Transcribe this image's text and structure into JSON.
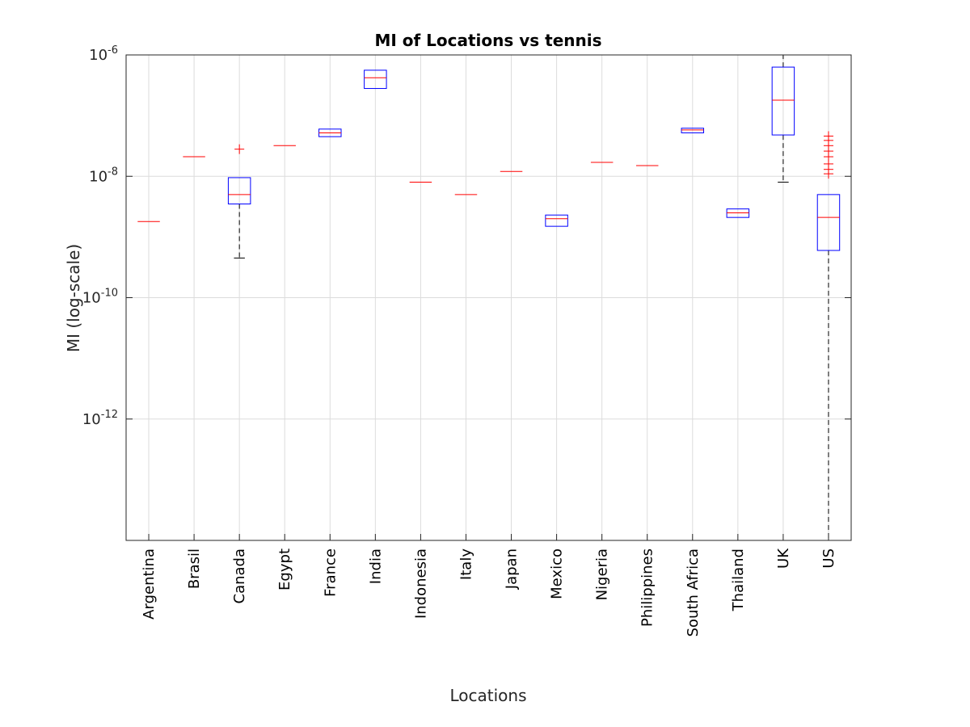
{
  "chart_data": {
    "type": "boxplot",
    "title": "MI of Locations vs tennis",
    "xlabel": "Locations",
    "ylabel": "MI (log-scale)",
    "yscale": "log",
    "ylim": [
      1e-14,
      1e-06
    ],
    "grid": true,
    "yticks": [
      {
        "value": 1e-12,
        "base": "10",
        "exp": "-12"
      },
      {
        "value": 1e-10,
        "base": "10",
        "exp": "-10"
      },
      {
        "value": 1e-08,
        "base": "10",
        "exp": "-8"
      },
      {
        "value": 1e-06,
        "base": "10",
        "exp": "-6"
      }
    ],
    "categories": [
      "Argentina",
      "Brasil",
      "Canada",
      "Egypt",
      "France",
      "India",
      "Indonesia",
      "Italy",
      "Japan",
      "Mexico",
      "Nigeria",
      "Philippines",
      "South Africa",
      "Thailand",
      "UK",
      "US"
    ],
    "boxes": [
      {
        "category": "Argentina",
        "median": 1.8e-09
      },
      {
        "category": "Brasil",
        "median": 2.1e-08
      },
      {
        "category": "Canada",
        "q1": 3.5e-09,
        "median": 5e-09,
        "q3": 9.5e-09,
        "whisker_low": 4.5e-10,
        "whisker_high": 9.5e-09,
        "outliers": [
          2.8e-08
        ]
      },
      {
        "category": "Egypt",
        "median": 3.2e-08
      },
      {
        "category": "France",
        "q1": 4.5e-08,
        "median": 5.2e-08,
        "q3": 6e-08,
        "whisker_low": 4.5e-08,
        "whisker_high": 6e-08
      },
      {
        "category": "India",
        "q1": 2.8e-07,
        "median": 4.2e-07,
        "q3": 5.6e-07,
        "whisker_low": 2.8e-07,
        "whisker_high": 5.6e-07
      },
      {
        "category": "Indonesia",
        "median": 8e-09
      },
      {
        "category": "Italy",
        "median": 5e-09
      },
      {
        "category": "Japan",
        "median": 1.2e-08
      },
      {
        "category": "Mexico",
        "q1": 1.5e-09,
        "median": 2e-09,
        "q3": 2.3e-09,
        "whisker_low": 1.5e-09,
        "whisker_high": 2.3e-09
      },
      {
        "category": "Nigeria",
        "median": 1.7e-08
      },
      {
        "category": "Philippines",
        "median": 1.5e-08
      },
      {
        "category": "South Africa",
        "q1": 5.2e-08,
        "median": 5.8e-08,
        "q3": 6.2e-08,
        "whisker_low": 5.2e-08,
        "whisker_high": 6.2e-08
      },
      {
        "category": "Thailand",
        "q1": 2.1e-09,
        "median": 2.5e-09,
        "q3": 2.9e-09,
        "whisker_low": 2.1e-09,
        "whisker_high": 2.9e-09
      },
      {
        "category": "UK",
        "q1": 4.8e-08,
        "median": 1.8e-07,
        "q3": 6.3e-07,
        "whisker_low": 8e-09,
        "whisker_high": 1e-06
      },
      {
        "category": "US",
        "q1": 6e-10,
        "median": 2.1e-09,
        "q3": 5e-09,
        "whisker_low": 1e-14,
        "whisker_high": 5e-09,
        "outliers": [
          1.1e-08,
          1.3e-08,
          1.6e-08,
          2.1e-08,
          2.6e-08,
          3.2e-08,
          3.9e-08,
          4.6e-08
        ]
      }
    ],
    "colors": {
      "box": "#0000ff",
      "median": "#ff0000",
      "whisker": "#000000",
      "outlier": "#ff0000",
      "grid": "#dcdcdc",
      "axis": "#262626"
    }
  }
}
